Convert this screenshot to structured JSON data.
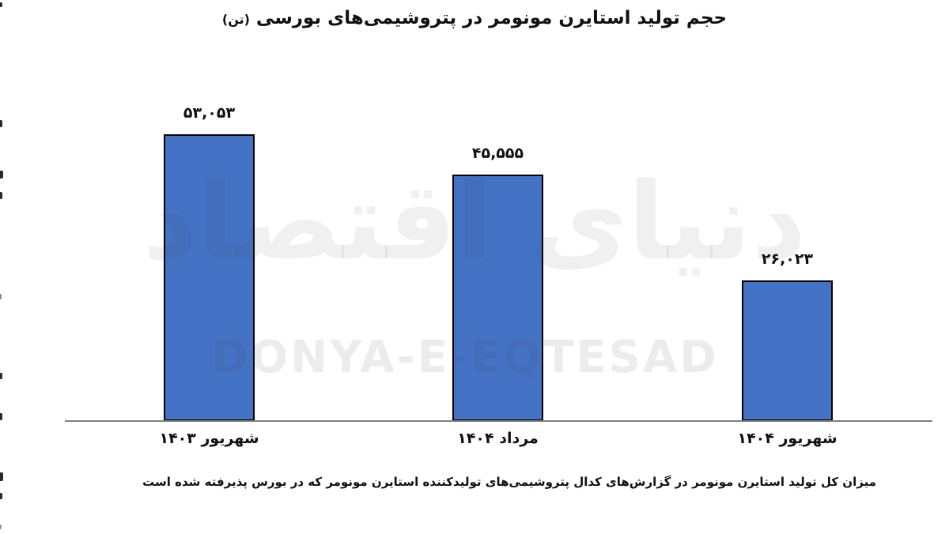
{
  "title": {
    "text": "حجم تولید استایرن مونومر در پتروشیمی‌های بورسی",
    "unit": "(تن)"
  },
  "watermark": {
    "fa": "دنیای اقتصاد",
    "en": "DONYA-E-EQTESAD"
  },
  "caption": "میزان کل تولید استایرن مونومر در گزارش‌های کدال پتروشیمی‌های تولیدکننده استایرن مونومر که در بورس پذیرفته شده است",
  "chart_data": {
    "type": "bar",
    "title": "حجم تولید استایرن مونومر در پتروشیمی‌های بورسی (تن)",
    "categories": [
      "شهریور ۱۴۰۳",
      "مرداد ۱۴۰۴",
      "شهریور ۱۴۰۴"
    ],
    "values": [
      53053,
      45555,
      26023
    ],
    "value_labels": [
      "۵۳,۰۵۳",
      "۴۵,۵۵۵",
      "۲۶,۰۲۳"
    ],
    "ylabel": "تن",
    "ylim": [
      0,
      56000
    ],
    "grid": false,
    "legend": false,
    "bar_color": "#4472C4",
    "bar_border_color": "#000000",
    "axis_color": "#7F7F7F",
    "text_color": "#111111"
  }
}
